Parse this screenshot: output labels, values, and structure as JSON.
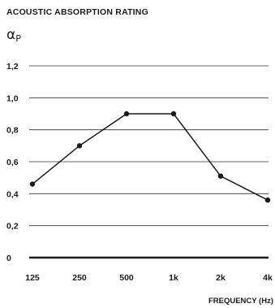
{
  "chart_data": {
    "type": "line",
    "title": "ACOUSTIC ABSORPTION RATING",
    "ylabel_main": "α",
    "ylabel_sub": "P",
    "xlabel": "FREQUENCY (Hz)",
    "categories": [
      "125",
      "250",
      "500",
      "1k",
      "2k",
      "4k"
    ],
    "series": [
      {
        "values": [
          0.46,
          0.7,
          0.9,
          0.9,
          0.51,
          0.36
        ]
      }
    ],
    "yticks": [
      0,
      0.2,
      0.4,
      0.6,
      0.8,
      1.0,
      1.2
    ],
    "ytick_labels": [
      "0",
      "0,2",
      "0,4",
      "0,6",
      "0,8",
      "1,0",
      "1,2"
    ],
    "ylim": [
      0,
      1.2
    ],
    "grid": true,
    "colors": {
      "line": "#1a1a1a",
      "grid": "#333333",
      "text": "#1a1a1a"
    }
  }
}
